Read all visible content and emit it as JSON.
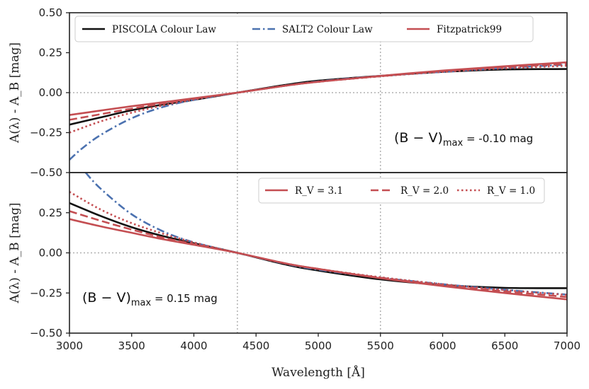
{
  "chart_data": [
    {
      "type": "line",
      "panel": "top",
      "xlabel": "",
      "ylabel": "A(λ) - A_B [mag]",
      "xlim": [
        3000,
        7000
      ],
      "ylim": [
        -0.5,
        0.5
      ],
      "yticks": [
        "−0.50",
        "−0.25",
        "0.00",
        "0.25",
        "0.50"
      ],
      "reference_lines": {
        "x": [
          4350,
          5500
        ],
        "y": [
          0
        ]
      },
      "annotation": {
        "main": "(B − V)",
        "sub": "max",
        "value": " = -0.10 mag"
      },
      "legend": {
        "placement": "top",
        "entries": [
          "PISCOLA Colour Law",
          "SALT2 Colour Law",
          "Fitzpatrick99"
        ]
      },
      "series": [
        {
          "name": "PISCOLA Colour Law",
          "color": "#111111",
          "dash": "solid",
          "x": [
            3000,
            3250,
            3500,
            3750,
            4000,
            4350,
            4750,
            5000,
            5500,
            6000,
            6500,
            7000
          ],
          "y": [
            -0.2,
            -0.155,
            -0.11,
            -0.075,
            -0.045,
            0.0,
            0.05,
            0.075,
            0.105,
            0.13,
            0.145,
            0.148
          ]
        },
        {
          "name": "SALT2 Colour Law",
          "color": "#4c72b0",
          "dash": "dashdot",
          "x": [
            3000,
            3100,
            3250,
            3500,
            3750,
            4000,
            4350,
            4750,
            5000,
            5500,
            6000,
            6500,
            7000
          ],
          "y": [
            -0.42,
            -0.35,
            -0.265,
            -0.16,
            -0.09,
            -0.045,
            0.0,
            0.045,
            0.07,
            0.105,
            0.13,
            0.155,
            0.175
          ]
        },
        {
          "name": "Fitzpatrick99 R_V = 3.1",
          "color": "#c44e52",
          "dash": "solid",
          "x": [
            3000,
            3250,
            3500,
            3750,
            4000,
            4350,
            4750,
            5000,
            5500,
            6000,
            6500,
            7000
          ],
          "y": [
            -0.14,
            -0.112,
            -0.085,
            -0.06,
            -0.035,
            0.0,
            0.045,
            0.068,
            0.105,
            0.138,
            0.165,
            0.19
          ]
        },
        {
          "name": "Fitzpatrick99 R_V = 2.0",
          "color": "#c44e52",
          "dash": "dashed",
          "x": [
            3000,
            3250,
            3500,
            3750,
            4000,
            4350,
            4750,
            5000,
            5500,
            6000,
            6500,
            7000
          ],
          "y": [
            -0.17,
            -0.135,
            -0.1,
            -0.068,
            -0.038,
            0.0,
            0.045,
            0.068,
            0.103,
            0.135,
            0.16,
            0.18
          ]
        },
        {
          "name": "Fitzpatrick99 R_V = 1.0",
          "color": "#c44e52",
          "dash": "dotted",
          "x": [
            3000,
            3250,
            3500,
            3750,
            4000,
            4350,
            4750,
            5000,
            5500,
            6000,
            6500,
            7000
          ],
          "y": [
            -0.25,
            -0.18,
            -0.125,
            -0.08,
            -0.043,
            0.0,
            0.045,
            0.068,
            0.102,
            0.13,
            0.152,
            0.168
          ]
        }
      ]
    },
    {
      "type": "line",
      "panel": "bottom",
      "xlabel": "Wavelength [Å]",
      "ylabel": "A(λ) - A_B [mag]",
      "xlim": [
        3000,
        7000
      ],
      "ylim": [
        -0.5,
        0.5
      ],
      "xticks": [
        "3000",
        "3500",
        "4000",
        "4500",
        "5000",
        "5500",
        "6000",
        "6500",
        "7000"
      ],
      "yticks": [
        "−0.50",
        "−0.25",
        "0.00",
        "0.25"
      ],
      "reference_lines": {
        "x": [
          4350,
          5500
        ],
        "y": [
          0
        ]
      },
      "annotation": {
        "main": "(B − V)",
        "sub": "max",
        "value": " = 0.15 mag"
      },
      "legend": {
        "placement": "top-right",
        "entries": [
          "R_V = 3.1",
          "R_V = 2.0",
          "R_V = 1.0"
        ]
      },
      "series": [
        {
          "name": "PISCOLA Colour Law",
          "color": "#111111",
          "dash": "solid",
          "x": [
            3000,
            3250,
            3500,
            3750,
            4000,
            4350,
            4750,
            5000,
            5500,
            6000,
            6500,
            7000
          ],
          "y": [
            0.31,
            0.23,
            0.16,
            0.105,
            0.06,
            0.0,
            -0.075,
            -0.11,
            -0.165,
            -0.2,
            -0.218,
            -0.22
          ]
        },
        {
          "name": "SALT2 Colour Law",
          "color": "#4c72b0",
          "dash": "dashdot",
          "x": [
            3130,
            3250,
            3500,
            3750,
            4000,
            4350,
            4750,
            5000,
            5500,
            6000,
            6500,
            7000
          ],
          "y": [
            0.5,
            0.4,
            0.24,
            0.135,
            0.065,
            0.0,
            -0.07,
            -0.105,
            -0.155,
            -0.195,
            -0.23,
            -0.26
          ]
        },
        {
          "name": "Fitzpatrick99 R_V = 3.1",
          "color": "#c44e52",
          "dash": "solid",
          "x": [
            3000,
            3250,
            3500,
            3750,
            4000,
            4350,
            4750,
            5000,
            5500,
            6000,
            6500,
            7000
          ],
          "y": [
            0.21,
            0.165,
            0.125,
            0.085,
            0.05,
            0.0,
            -0.068,
            -0.1,
            -0.158,
            -0.207,
            -0.25,
            -0.29
          ]
        },
        {
          "name": "Fitzpatrick99 R_V = 2.0",
          "color": "#c44e52",
          "dash": "dashed",
          "x": [
            3000,
            3250,
            3500,
            3750,
            4000,
            4350,
            4750,
            5000,
            5500,
            6000,
            6500,
            7000
          ],
          "y": [
            0.26,
            0.2,
            0.145,
            0.095,
            0.055,
            0.0,
            -0.068,
            -0.1,
            -0.155,
            -0.2,
            -0.24,
            -0.275
          ]
        },
        {
          "name": "Fitzpatrick99 R_V = 1.0",
          "color": "#c44e52",
          "dash": "dotted",
          "x": [
            3000,
            3250,
            3500,
            3750,
            4000,
            4350,
            4750,
            5000,
            5500,
            6000,
            6500,
            7000
          ],
          "y": [
            0.38,
            0.27,
            0.185,
            0.12,
            0.065,
            0.0,
            -0.068,
            -0.1,
            -0.152,
            -0.195,
            -0.232,
            -0.262
          ]
        }
      ]
    }
  ]
}
